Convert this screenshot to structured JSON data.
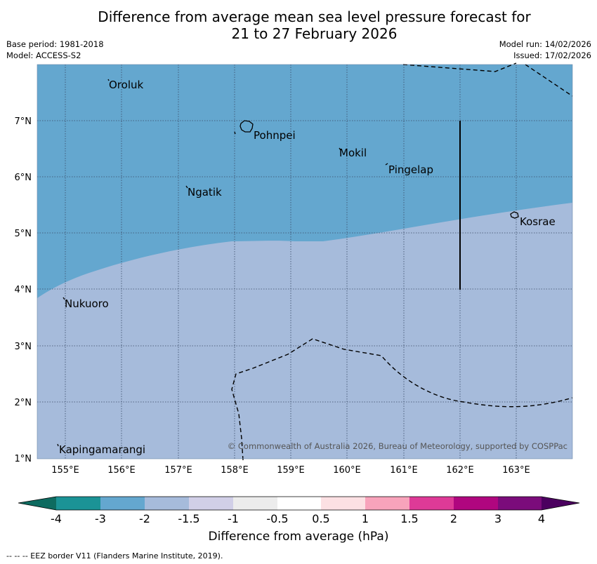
{
  "header": {
    "title_line1": "Difference from average mean sea level pressure forecast for",
    "title_line2": "21 to 27 February 2026",
    "base_period": "Base period: 1981-2018",
    "model": "Model: ACCESS-S2",
    "model_run": "Model run: 14/02/2026",
    "issued": "Issued: 17/02/2026"
  },
  "map": {
    "lat_labels": [
      "7°N",
      "6°N",
      "5°N",
      "4°N",
      "3°N",
      "2°N",
      "1°N"
    ],
    "lon_labels": [
      "155°E",
      "156°E",
      "157°E",
      "158°E",
      "159°E",
      "160°E",
      "161°E",
      "162°E",
      "163°E"
    ],
    "places": [
      "Oroluk",
      "Pohnpei",
      "Mokil",
      "Pingelap",
      "Ngatik",
      "Kosrae",
      "Nukuoro",
      "Kapingamarangi"
    ],
    "copyright": "© Commonwealth of Australia 2026, Bureau of Meteorology, supported by COSPPac",
    "colors": {
      "band_m3_m2": "#64a7cf",
      "band_m2_m15": "#a6bbdb",
      "eez_line": "#000000"
    }
  },
  "colorbar": {
    "ticks": [
      "-4",
      "-3",
      "-2",
      "-1.5",
      "-1",
      "-0.5",
      "0.5",
      "1",
      "1.5",
      "2",
      "3",
      "4"
    ],
    "colors": [
      "#0e6b60",
      "#1b9396",
      "#64a7cf",
      "#a6bbdb",
      "#d1cfe7",
      "#ececec",
      "#ffffff",
      "#fce0e3",
      "#f8a3bb",
      "#de3a97",
      "#b0067f",
      "#7b0c7b",
      "#4b005f"
    ],
    "label": "Difference from average (hPa)"
  },
  "footnote": "-- -- -- EEZ border V11 (Flanders Marine Institute, 2019)."
}
